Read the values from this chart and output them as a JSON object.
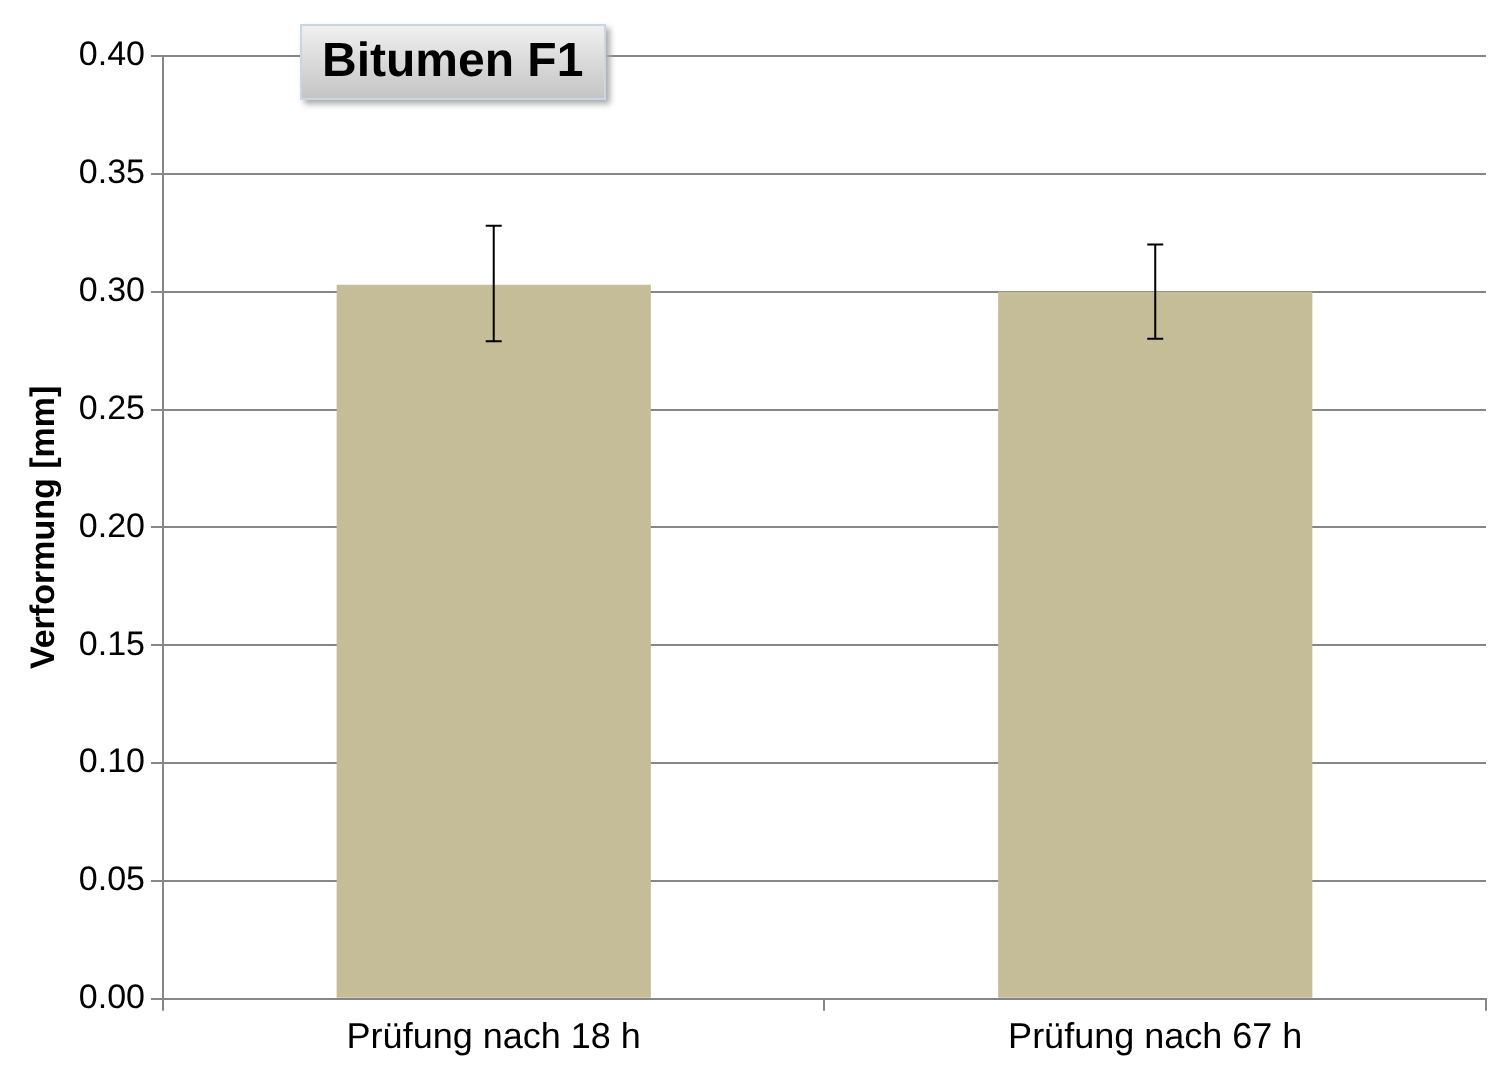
{
  "chart_data": {
    "type": "bar",
    "title": "Bitumen F1",
    "ylabel": "Verformung [mm]",
    "categories": [
      "Prüfung nach 18 h",
      "Prüfung nach 67 h"
    ],
    "values": [
      0.303,
      0.3
    ],
    "errors": [
      [
        0.279,
        0.328
      ],
      [
        0.28,
        0.32
      ]
    ],
    "color": "#c4bd97",
    "ylim": [
      0,
      0.4
    ],
    "yticks": [
      {
        "value": 0,
        "label": "0.00"
      },
      0.05,
      {
        "value": 0.1,
        "label": "0.10"
      },
      0.15,
      {
        "value": 0.2,
        "label": "0.20"
      },
      0.25,
      {
        "value": 0.3,
        "label": "0.30"
      },
      0.35,
      {
        "value": 0.4,
        "label": "0.40"
      }
    ],
    "grid": "y",
    "legend": false
  }
}
